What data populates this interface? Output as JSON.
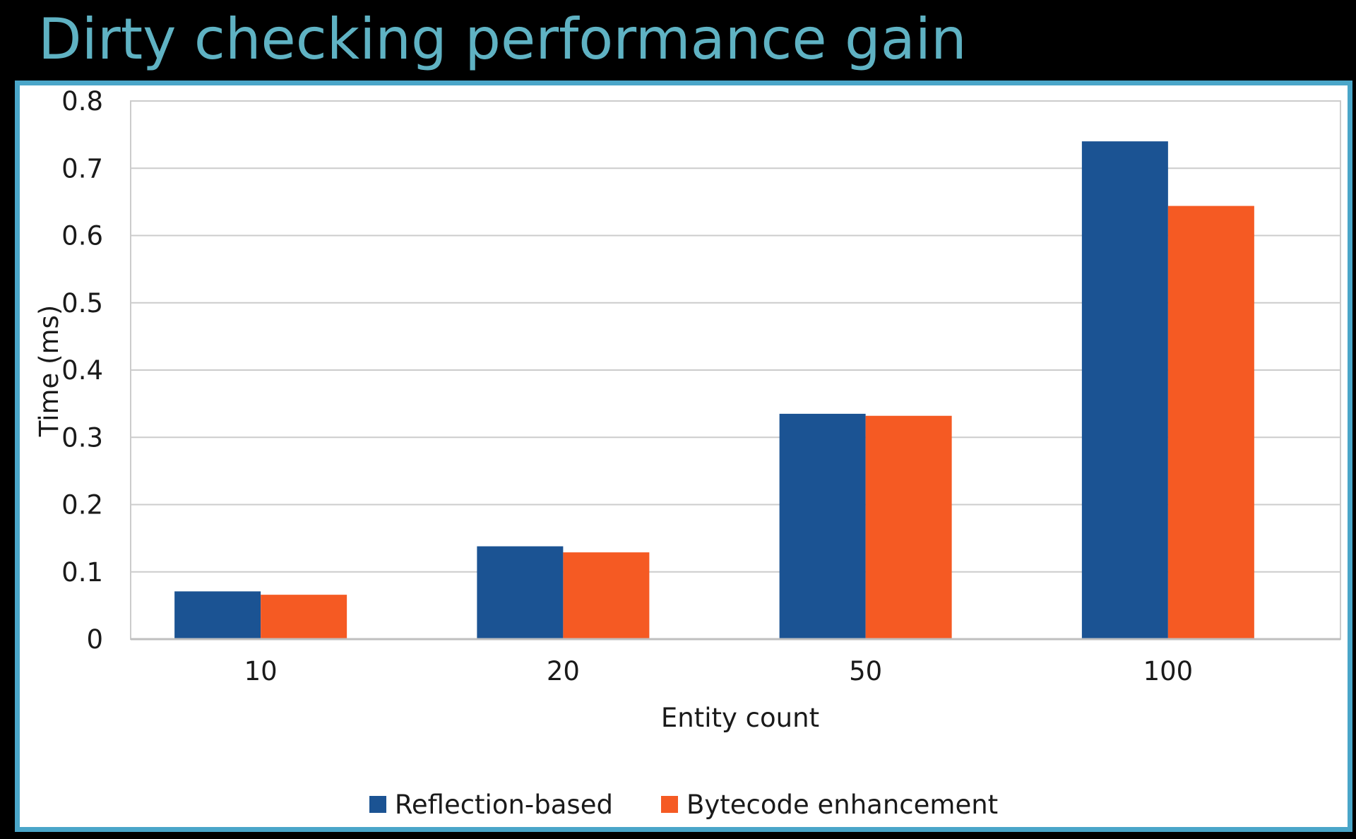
{
  "slide": {
    "title": "Dirty checking performance gain"
  },
  "colors": {
    "reflection": "#1b5393",
    "bytecode": "#f55a23",
    "frame_border": "#4aa6c9",
    "title": "#5fb2c3",
    "grid": "#cccccc"
  },
  "chart_data": {
    "type": "bar",
    "title": "",
    "xlabel": "Entity count",
    "ylabel": "Time (ms)",
    "categories": [
      "10",
      "20",
      "50",
      "100"
    ],
    "series": [
      {
        "name": "Reflection-based",
        "values": [
          0.071,
          0.138,
          0.335,
          0.74
        ]
      },
      {
        "name": "Bytecode enhancement",
        "values": [
          0.066,
          0.129,
          0.332,
          0.644
        ]
      }
    ],
    "ylim": [
      0,
      0.8
    ],
    "yticks": [
      0,
      0.1,
      0.2,
      0.3,
      0.4,
      0.5,
      0.6,
      0.7,
      0.8
    ],
    "ytick_labels": [
      "0",
      "0.1",
      "0.2",
      "0.3",
      "0.4",
      "0.5",
      "0.6",
      "0.7",
      "0.8"
    ],
    "grid": true,
    "legend_position": "bottom-center"
  }
}
